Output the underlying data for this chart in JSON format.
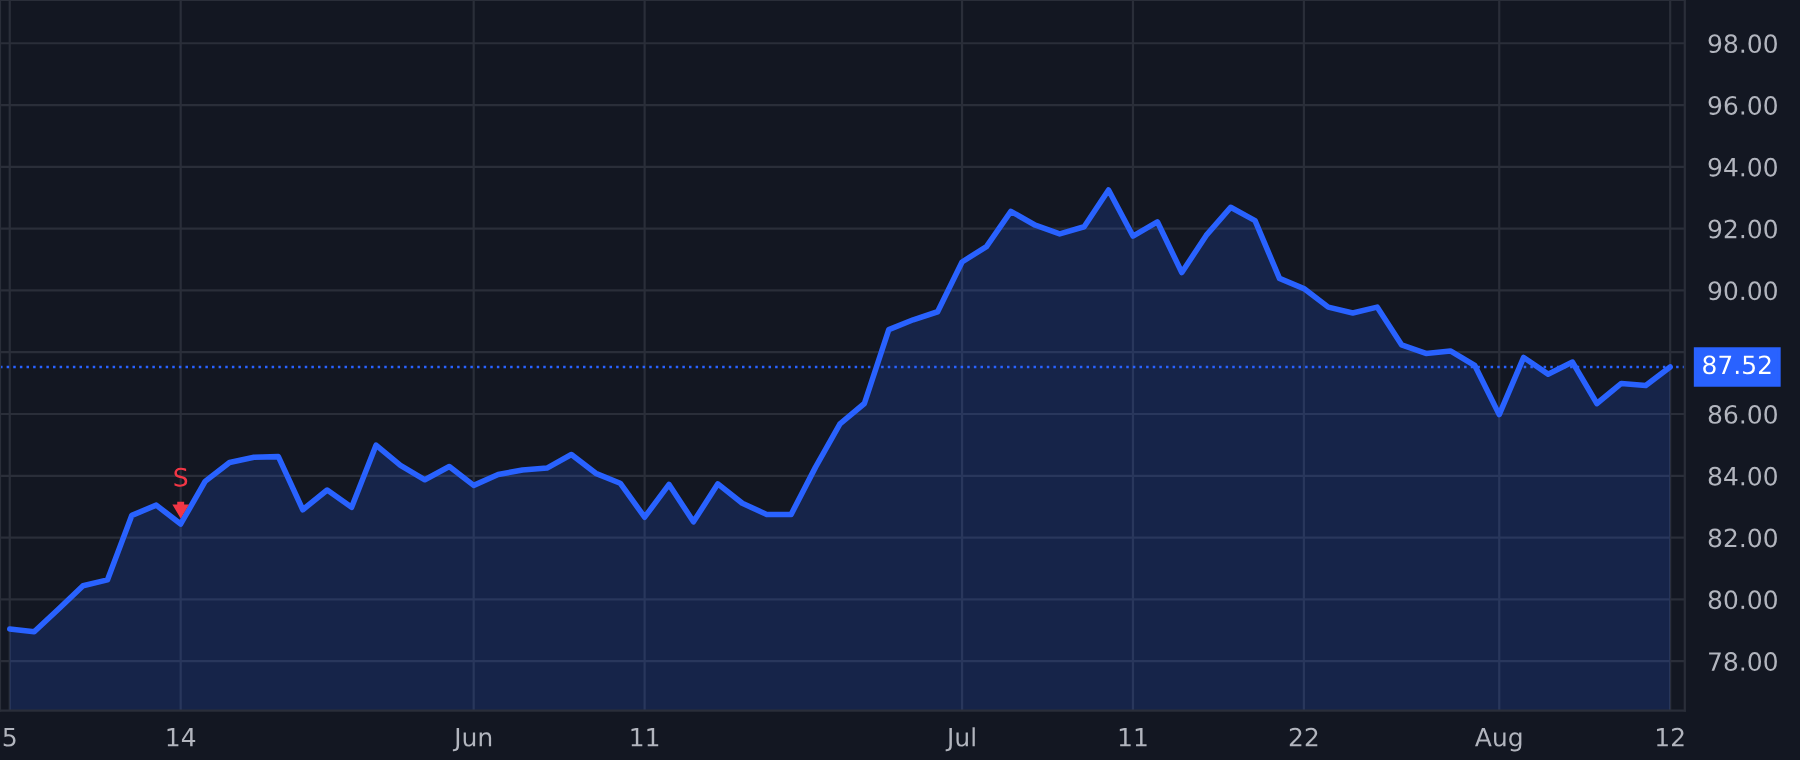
{
  "chart_data": {
    "type": "area",
    "categories": [
      "5",
      null,
      null,
      null,
      null,
      null,
      null,
      "14",
      null,
      null,
      null,
      null,
      null,
      null,
      null,
      null,
      null,
      null,
      null,
      "Jun",
      null,
      null,
      null,
      null,
      null,
      null,
      "11",
      null,
      null,
      null,
      null,
      null,
      null,
      null,
      null,
      null,
      null,
      null,
      null,
      "Jul",
      null,
      null,
      null,
      null,
      null,
      null,
      "11",
      null,
      null,
      null,
      null,
      null,
      null,
      "22",
      null,
      null,
      null,
      null,
      null,
      null,
      null,
      "Aug",
      null,
      null,
      null,
      null,
      null,
      null,
      "12"
    ],
    "series": [
      {
        "color": "#2962ff",
        "values": [
          79.04,
          78.95,
          79.69,
          80.44,
          80.63,
          82.72,
          83.05,
          82.44,
          83.82,
          84.43,
          84.6,
          84.62,
          82.9,
          83.54,
          82.98,
          84.99,
          84.34,
          83.87,
          84.3,
          83.69,
          84.04,
          84.19,
          84.25,
          84.69,
          84.08,
          83.76,
          82.66,
          83.72,
          82.51,
          83.74,
          83.11,
          82.75,
          82.75,
          84.28,
          85.68,
          86.34,
          88.73,
          89.05,
          89.31,
          90.92,
          91.42,
          92.56,
          92.11,
          91.83,
          92.06,
          93.25,
          91.76,
          92.22,
          90.58,
          91.78,
          92.69,
          92.26,
          90.39,
          90.06,
          89.46,
          89.27,
          89.46,
          88.24,
          87.96,
          88.04,
          87.57,
          85.98,
          87.83,
          87.29,
          87.68,
          86.34,
          86.99,
          86.92,
          87.52
        ]
      }
    ],
    "ylim": [
      76.4,
      99.4
    ],
    "yticks": [
      {
        "value": 78,
        "label": "78.00"
      },
      {
        "value": 80,
        "label": "80.00"
      },
      {
        "value": 82,
        "label": "82.00"
      },
      {
        "value": 84,
        "label": "84.00"
      },
      {
        "value": 86,
        "label": "86.00"
      },
      {
        "value": 88,
        "label": null
      },
      {
        "value": 90,
        "label": "90.00"
      },
      {
        "value": 92,
        "label": "92.00"
      },
      {
        "value": 94,
        "label": "94.00"
      },
      {
        "value": 96,
        "label": "96.00"
      },
      {
        "value": 98,
        "label": "98.00"
      }
    ],
    "ref_lines": [
      {
        "axis": "y",
        "value": 87.52,
        "label": "87.52",
        "color": "#2962ff",
        "line_style": "dotted"
      }
    ],
    "annotations": [
      {
        "text": "S",
        "x": "14",
        "y": 82.44
      }
    ],
    "grid": true
  }
}
